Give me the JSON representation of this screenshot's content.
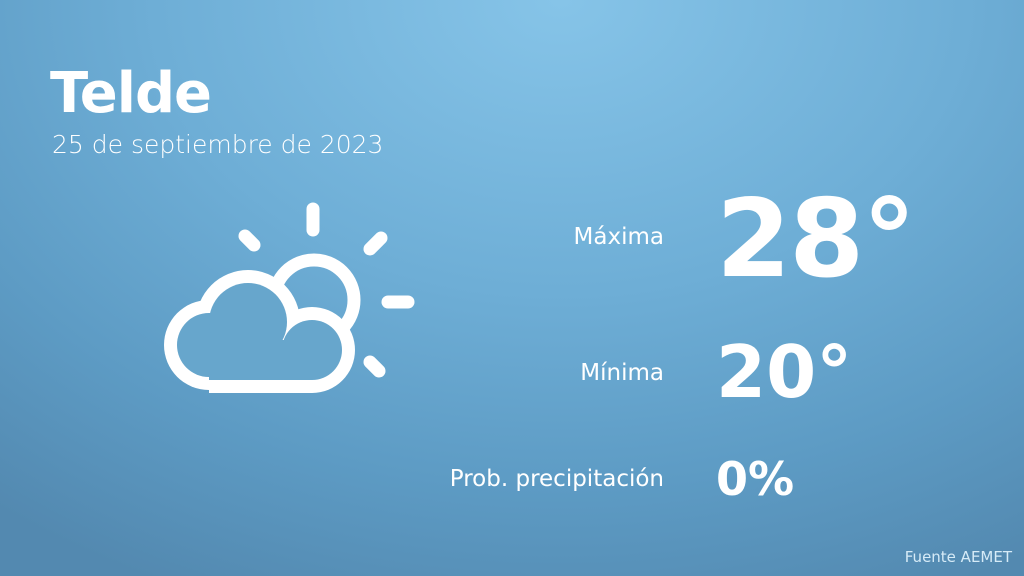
{
  "city": "Telde",
  "date": "25 de septiembre de 2023",
  "weather_icon": "partly-cloudy-icon",
  "stats": {
    "max_label": "Máxima",
    "max_value": "28°",
    "min_label": "Mínima",
    "min_value": "20°",
    "precip_label": "Prob. precipitación",
    "precip_value": "0%"
  },
  "source": "Fuente AEMET",
  "colors": {
    "background_top": "#86c4e8",
    "background_bottom": "#5389b0",
    "text": "#ffffff"
  }
}
